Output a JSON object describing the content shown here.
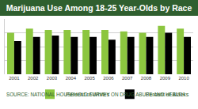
{
  "chart_data": {
    "type": "bar",
    "title": "Marijuana Use Among 18-25 Year-Olds by Race",
    "annotations": [
      "SOURCE: NATIONAL HOUSEHOLD SURVEY ON DRUG ABUSE AND HEALTH"
    ],
    "categories": [
      "2001",
      "2002",
      "2003",
      "2004",
      "2005",
      "2006",
      "2007",
      "2008",
      "2009",
      "2010"
    ],
    "series": [
      {
        "name": "Percent of Whites",
        "color": "#8cc63f",
        "values": [
          30,
          33,
          32,
          32,
          32,
          32,
          31,
          30,
          35,
          33
        ]
      },
      {
        "name": "Percent of Blacks",
        "color": "#000000",
        "values": [
          24,
          27,
          28,
          27,
          27,
          25,
          27,
          27,
          30,
          27
        ]
      }
    ],
    "ylim": [
      0,
      40
    ],
    "yticks": [
      0,
      10,
      20,
      30,
      40
    ],
    "grid": true,
    "legend": "bottom-right",
    "tick_labels": "x"
  }
}
